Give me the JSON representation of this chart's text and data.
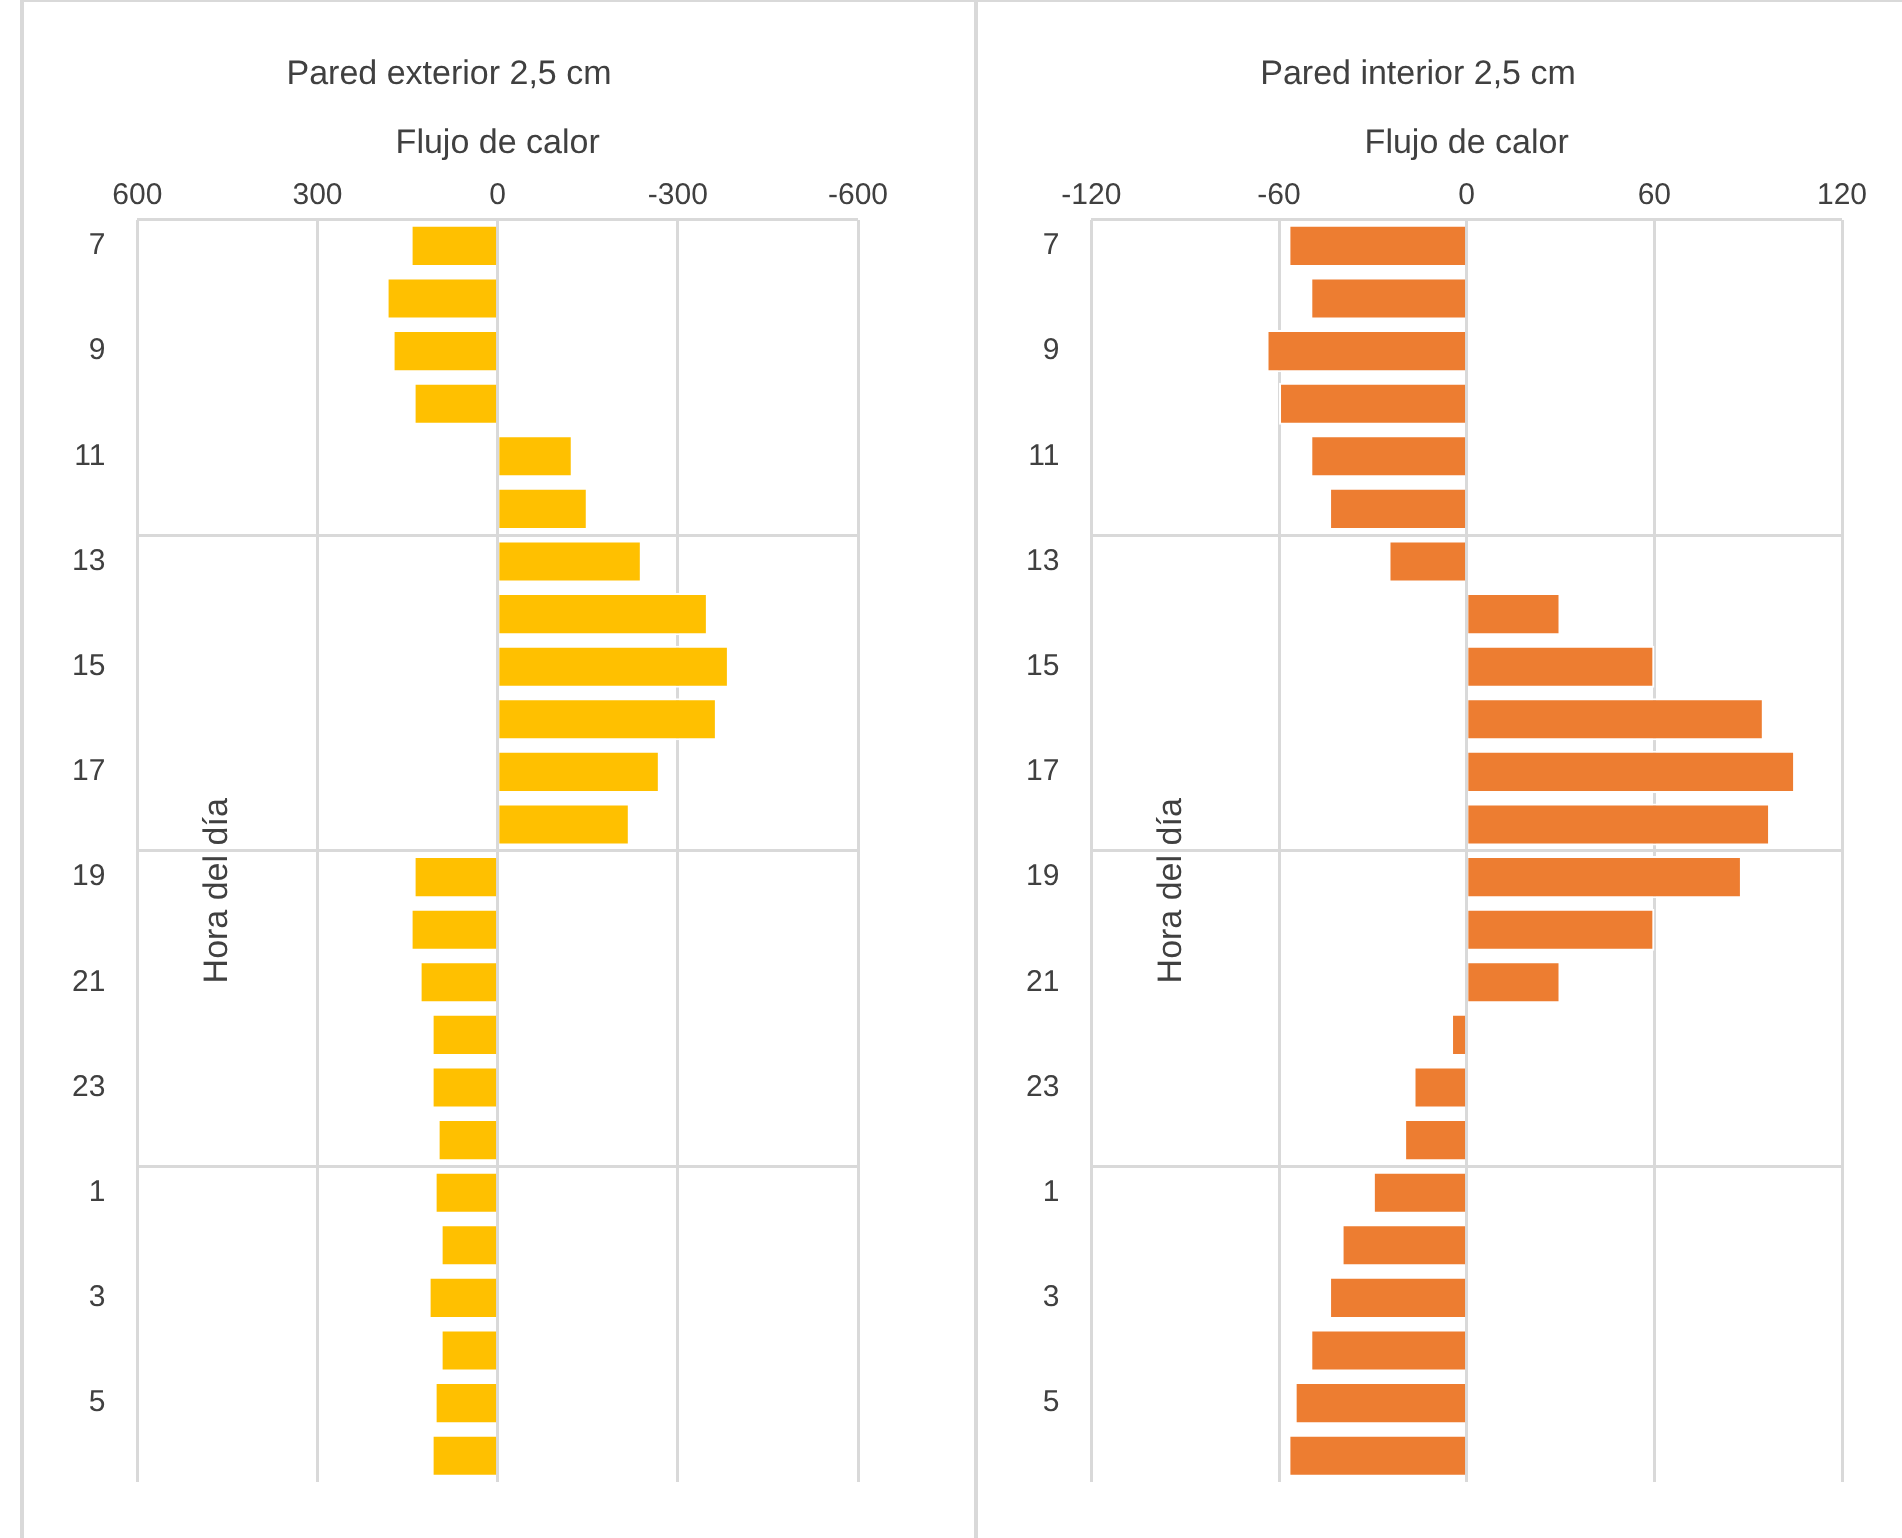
{
  "chart_data": [
    {
      "type": "bar",
      "orientation": "horizontal",
      "title": "Pared exterior 2,5 cm",
      "xlabel": "Flujo de calor",
      "ylabel": "Hora del día",
      "categories": [
        "7",
        null,
        "9",
        null,
        "11",
        null,
        "13",
        null,
        "15",
        null,
        "17",
        null,
        "19",
        null,
        "21",
        null,
        "23",
        null,
        "1",
        null,
        "3",
        null,
        "5",
        null
      ],
      "values": [
        145,
        185,
        175,
        140,
        -125,
        -150,
        -240,
        -350,
        -385,
        -365,
        -270,
        -220,
        140,
        145,
        130,
        110,
        110,
        100,
        105,
        95,
        115,
        95,
        105,
        110
      ],
      "color": "#ffc000",
      "xlim": [
        600,
        -600
      ],
      "xticks": [
        600,
        300,
        0,
        -300,
        -600
      ],
      "grid": true
    },
    {
      "type": "bar",
      "orientation": "horizontal",
      "title": "Pared interior 2,5 cm",
      "xlabel": "Flujo de calor",
      "ylabel": "Hora del día",
      "categories": [
        "7",
        null,
        "9",
        null,
        "11",
        null,
        "13",
        null,
        "15",
        null,
        "17",
        null,
        "19",
        null,
        "21",
        null,
        "23",
        null,
        "1",
        null,
        "3",
        null,
        "5",
        null
      ],
      "values": [
        -57,
        -50,
        -64,
        -60,
        -50,
        -44,
        -25,
        30,
        60,
        95,
        105,
        97,
        88,
        60,
        30,
        -5,
        -17,
        -20,
        -30,
        -40,
        -44,
        -50,
        -55,
        -57
      ],
      "color": "#ed7d31",
      "xlim": [
        -120,
        120
      ],
      "xticks": [
        -120,
        -60,
        0,
        60,
        120
      ],
      "grid": true
    }
  ]
}
